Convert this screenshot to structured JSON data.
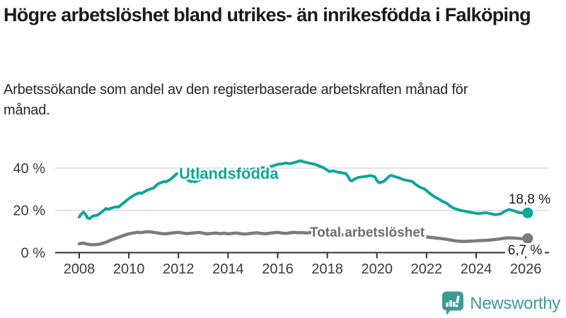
{
  "header": {
    "title": "Högre arbetslöshet bland utrikes- än inrikesfödda i Falköping",
    "subtitle": "Arbetssökande som andel av den registerbaserade arbetskraften månad för månad."
  },
  "branding": {
    "name": "Newsworthy",
    "logo_icon": "bar-chart-speech-bubble-icon",
    "logo_color": "#3f9a93"
  },
  "chart_data": {
    "type": "line",
    "unit": "%",
    "y_axis": {
      "ticks": [
        0,
        20,
        40
      ],
      "tick_suffix": " %",
      "range": [
        0,
        45
      ],
      "gridlines": true
    },
    "x_axis": {
      "ticks": [
        2008,
        2010,
        2012,
        2014,
        2016,
        2018,
        2020,
        2022,
        2024,
        2026
      ],
      "range": [
        2007,
        2026.9
      ]
    },
    "series": [
      {
        "name": "Utlandsfödda",
        "color": "#0da698",
        "end_label": "18,8 %",
        "end_value": 18.8,
        "points": [
          [
            2008.0,
            16.9
          ],
          [
            2008.08,
            18.2
          ],
          [
            2008.17,
            19.2
          ],
          [
            2008.25,
            18.2
          ],
          [
            2008.33,
            16.5
          ],
          [
            2008.42,
            16.1
          ],
          [
            2008.5,
            17.0
          ],
          [
            2008.58,
            17.4
          ],
          [
            2008.75,
            17.8
          ],
          [
            2008.92,
            19.3
          ],
          [
            2009.0,
            20.1
          ],
          [
            2009.08,
            20.9
          ],
          [
            2009.17,
            20.5
          ],
          [
            2009.33,
            21.2
          ],
          [
            2009.5,
            21.7
          ],
          [
            2009.58,
            21.5
          ],
          [
            2009.75,
            23.2
          ],
          [
            2009.92,
            24.8
          ],
          [
            2010.0,
            25.6
          ],
          [
            2010.17,
            26.9
          ],
          [
            2010.25,
            27.5
          ],
          [
            2010.42,
            28.3
          ],
          [
            2010.5,
            28.0
          ],
          [
            2010.58,
            28.5
          ],
          [
            2010.75,
            29.6
          ],
          [
            2010.92,
            30.3
          ],
          [
            2011.0,
            30.6
          ],
          [
            2011.17,
            32.5
          ],
          [
            2011.33,
            33.3
          ],
          [
            2011.42,
            33.7
          ],
          [
            2011.5,
            33.5
          ],
          [
            2011.67,
            34.6
          ],
          [
            2011.83,
            36.3
          ],
          [
            2011.92,
            37.2
          ],
          [
            2012.0,
            37.6
          ],
          [
            2012.08,
            37.9
          ],
          [
            2012.17,
            36.2
          ],
          [
            2012.33,
            34.6
          ],
          [
            2012.5,
            33.6
          ],
          [
            2012.58,
            33.9
          ],
          [
            2012.67,
            33.5
          ],
          [
            2012.83,
            34.3
          ],
          [
            2013.0,
            35.3
          ],
          [
            2013.17,
            35.1
          ],
          [
            2013.33,
            35.9
          ],
          [
            2013.5,
            36.3
          ],
          [
            2013.67,
            36.1
          ],
          [
            2013.83,
            36.9
          ],
          [
            2014.0,
            37.5
          ],
          [
            2014.17,
            37.9
          ],
          [
            2014.33,
            38.4
          ],
          [
            2014.5,
            38.1
          ],
          [
            2014.67,
            38.7
          ],
          [
            2014.83,
            39.1
          ],
          [
            2015.0,
            39.5
          ],
          [
            2015.17,
            39.9
          ],
          [
            2015.33,
            40.2
          ],
          [
            2015.5,
            40.1
          ],
          [
            2015.67,
            40.6
          ],
          [
            2015.83,
            41.1
          ],
          [
            2016.0,
            41.8
          ],
          [
            2016.17,
            42.0
          ],
          [
            2016.33,
            42.4
          ],
          [
            2016.5,
            42.1
          ],
          [
            2016.67,
            42.6
          ],
          [
            2016.83,
            43.2
          ],
          [
            2016.92,
            43.5
          ],
          [
            2017.0,
            43.1
          ],
          [
            2017.17,
            42.6
          ],
          [
            2017.33,
            42.2
          ],
          [
            2017.5,
            41.8
          ],
          [
            2017.67,
            41.0
          ],
          [
            2017.83,
            40.3
          ],
          [
            2017.92,
            39.6
          ],
          [
            2018.0,
            39.0
          ],
          [
            2018.08,
            38.4
          ],
          [
            2018.25,
            38.7
          ],
          [
            2018.42,
            38.1
          ],
          [
            2018.58,
            37.8
          ],
          [
            2018.75,
            37.4
          ],
          [
            2018.83,
            36.2
          ],
          [
            2018.92,
            34.3
          ],
          [
            2019.0,
            33.9
          ],
          [
            2019.08,
            34.7
          ],
          [
            2019.25,
            35.6
          ],
          [
            2019.42,
            35.9
          ],
          [
            2019.58,
            36.1
          ],
          [
            2019.75,
            36.5
          ],
          [
            2019.92,
            35.9
          ],
          [
            2020.0,
            34.1
          ],
          [
            2020.08,
            33.1
          ],
          [
            2020.25,
            33.5
          ],
          [
            2020.42,
            35.3
          ],
          [
            2020.5,
            36.2
          ],
          [
            2020.58,
            36.6
          ],
          [
            2020.75,
            35.9
          ],
          [
            2020.92,
            35.3
          ],
          [
            2021.08,
            34.5
          ],
          [
            2021.25,
            34.1
          ],
          [
            2021.42,
            33.7
          ],
          [
            2021.58,
            32.1
          ],
          [
            2021.75,
            30.9
          ],
          [
            2021.92,
            30.1
          ],
          [
            2022.0,
            29.4
          ],
          [
            2022.17,
            27.7
          ],
          [
            2022.33,
            26.4
          ],
          [
            2022.5,
            25.3
          ],
          [
            2022.67,
            24.1
          ],
          [
            2022.83,
            23.3
          ],
          [
            2022.92,
            22.3
          ],
          [
            2023.08,
            21.1
          ],
          [
            2023.25,
            20.4
          ],
          [
            2023.42,
            19.9
          ],
          [
            2023.58,
            19.5
          ],
          [
            2023.75,
            19.1
          ],
          [
            2023.92,
            18.8
          ],
          [
            2024.08,
            18.5
          ],
          [
            2024.25,
            18.7
          ],
          [
            2024.42,
            18.9
          ],
          [
            2024.58,
            18.4
          ],
          [
            2024.75,
            18.0
          ],
          [
            2024.92,
            18.2
          ],
          [
            2025.0,
            18.4
          ],
          [
            2025.17,
            19.7
          ],
          [
            2025.33,
            20.4
          ],
          [
            2025.5,
            19.9
          ],
          [
            2025.67,
            19.1
          ],
          [
            2025.83,
            18.8
          ],
          [
            2026.0,
            18.6
          ],
          [
            2026.08,
            18.8
          ]
        ]
      },
      {
        "name": "Total arbetslöshet",
        "color": "#7b7b7b",
        "end_label": "6,7 %",
        "end_value": 6.7,
        "points": [
          [
            2008.0,
            4.2
          ],
          [
            2008.17,
            4.5
          ],
          [
            2008.33,
            4.0
          ],
          [
            2008.5,
            3.7
          ],
          [
            2008.67,
            3.8
          ],
          [
            2008.83,
            4.0
          ],
          [
            2009.0,
            4.6
          ],
          [
            2009.17,
            5.4
          ],
          [
            2009.33,
            6.2
          ],
          [
            2009.5,
            6.9
          ],
          [
            2009.67,
            7.6
          ],
          [
            2009.83,
            8.3
          ],
          [
            2010.0,
            8.9
          ],
          [
            2010.17,
            9.3
          ],
          [
            2010.33,
            9.6
          ],
          [
            2010.5,
            9.5
          ],
          [
            2010.67,
            9.8
          ],
          [
            2010.83,
            9.9
          ],
          [
            2011.0,
            9.6
          ],
          [
            2011.17,
            9.3
          ],
          [
            2011.33,
            9.0
          ],
          [
            2011.5,
            8.9
          ],
          [
            2011.67,
            9.2
          ],
          [
            2011.83,
            9.4
          ],
          [
            2012.0,
            9.6
          ],
          [
            2012.17,
            9.3
          ],
          [
            2012.33,
            9.0
          ],
          [
            2012.5,
            9.2
          ],
          [
            2012.67,
            9.4
          ],
          [
            2012.83,
            9.6
          ],
          [
            2013.0,
            9.2
          ],
          [
            2013.17,
            8.9
          ],
          [
            2013.33,
            9.1
          ],
          [
            2013.5,
            9.3
          ],
          [
            2013.67,
            9.0
          ],
          [
            2013.83,
            9.2
          ],
          [
            2014.0,
            8.9
          ],
          [
            2014.17,
            9.1
          ],
          [
            2014.33,
            9.3
          ],
          [
            2014.5,
            9.0
          ],
          [
            2014.67,
            8.8
          ],
          [
            2014.83,
            9.0
          ],
          [
            2015.0,
            9.2
          ],
          [
            2015.17,
            9.4
          ],
          [
            2015.33,
            9.1
          ],
          [
            2015.5,
            8.9
          ],
          [
            2015.67,
            9.2
          ],
          [
            2015.83,
            9.4
          ],
          [
            2016.0,
            9.6
          ],
          [
            2016.17,
            9.3
          ],
          [
            2016.33,
            9.1
          ],
          [
            2016.5,
            9.4
          ],
          [
            2016.67,
            9.6
          ],
          [
            2016.83,
            9.4
          ],
          [
            2017.0,
            9.5
          ],
          [
            2017.17,
            9.3
          ],
          [
            2017.33,
            9.5
          ],
          [
            2017.67,
            9.2
          ],
          [
            2018.0,
            9.0
          ],
          [
            2018.33,
            8.7
          ],
          [
            2018.67,
            8.4
          ],
          [
            2019.0,
            8.2
          ],
          [
            2019.33,
            8.0
          ],
          [
            2019.67,
            8.1
          ],
          [
            2020.0,
            8.4
          ],
          [
            2020.33,
            9.2
          ],
          [
            2020.5,
            9.5
          ],
          [
            2020.83,
            9.2
          ],
          [
            2021.17,
            8.8
          ],
          [
            2021.5,
            8.4
          ],
          [
            2021.83,
            7.8
          ],
          [
            2022.17,
            7.2
          ],
          [
            2022.5,
            6.8
          ],
          [
            2022.83,
            6.3
          ],
          [
            2023.0,
            5.9
          ],
          [
            2023.17,
            5.6
          ],
          [
            2023.33,
            5.4
          ],
          [
            2023.5,
            5.3
          ],
          [
            2023.67,
            5.4
          ],
          [
            2023.83,
            5.5
          ],
          [
            2024.0,
            5.6
          ],
          [
            2024.17,
            5.7
          ],
          [
            2024.33,
            5.8
          ],
          [
            2024.5,
            5.9
          ],
          [
            2024.67,
            6.1
          ],
          [
            2024.83,
            6.3
          ],
          [
            2025.0,
            6.6
          ],
          [
            2025.17,
            6.9
          ],
          [
            2025.33,
            7.0
          ],
          [
            2025.5,
            6.9
          ],
          [
            2025.67,
            6.8
          ],
          [
            2025.83,
            6.6
          ],
          [
            2026.08,
            6.7
          ]
        ]
      }
    ]
  }
}
